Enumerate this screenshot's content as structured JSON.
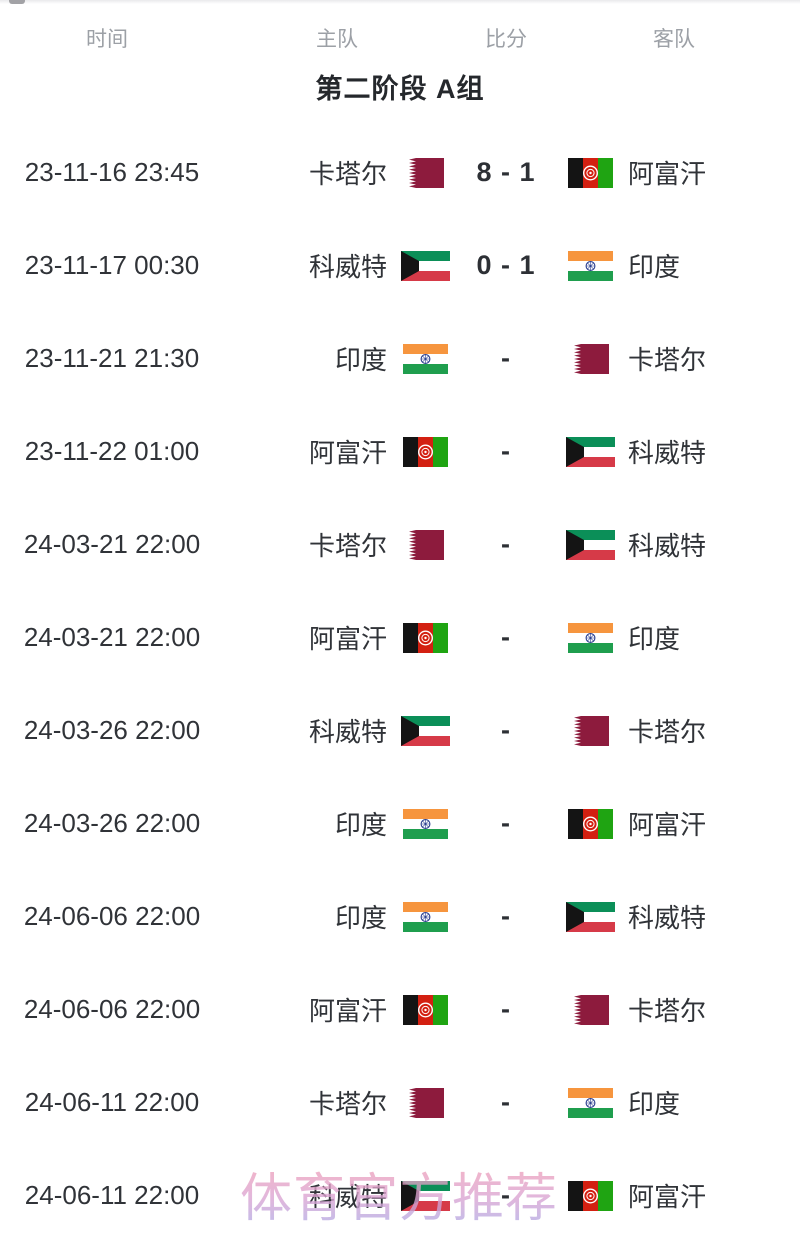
{
  "table_header": {
    "time": "时间",
    "home": "主队",
    "score": "比分",
    "away": "客队"
  },
  "group_title": "第二阶段 A组",
  "watermark_text": "体育官方推荐",
  "flag_colors": {
    "qatar_maroon": "#8d1b3d",
    "afghan_black": "#141414",
    "afghan_red": "#d32011",
    "afghan_green": "#1fa412",
    "kuwait_green": "#0b8f58",
    "kuwait_red": "#d63a48",
    "kuwait_black": "#141414",
    "india_saffron": "#f6953e",
    "india_green": "#1f9e4e",
    "india_navy": "#2b3f8f",
    "white": "#ffffff"
  },
  "matches": [
    {
      "time": "23-11-16 23:45",
      "home": {
        "name": "卡塔尔",
        "flag": "qatar"
      },
      "score": "8 - 1",
      "away": {
        "name": "阿富汗",
        "flag": "afghanistan"
      }
    },
    {
      "time": "23-11-17 00:30",
      "home": {
        "name": "科威特",
        "flag": "kuwait"
      },
      "score": "0 - 1",
      "away": {
        "name": "印度",
        "flag": "india"
      }
    },
    {
      "time": "23-11-21 21:30",
      "home": {
        "name": "印度",
        "flag": "india"
      },
      "score": "-",
      "away": {
        "name": "卡塔尔",
        "flag": "qatar"
      }
    },
    {
      "time": "23-11-22 01:00",
      "home": {
        "name": "阿富汗",
        "flag": "afghanistan"
      },
      "score": "-",
      "away": {
        "name": "科威特",
        "flag": "kuwait"
      }
    },
    {
      "time": "24-03-21 22:00",
      "home": {
        "name": "卡塔尔",
        "flag": "qatar"
      },
      "score": "-",
      "away": {
        "name": "科威特",
        "flag": "kuwait"
      }
    },
    {
      "time": "24-03-21 22:00",
      "home": {
        "name": "阿富汗",
        "flag": "afghanistan"
      },
      "score": "-",
      "away": {
        "name": "印度",
        "flag": "india"
      }
    },
    {
      "time": "24-03-26 22:00",
      "home": {
        "name": "科威特",
        "flag": "kuwait"
      },
      "score": "-",
      "away": {
        "name": "卡塔尔",
        "flag": "qatar"
      }
    },
    {
      "time": "24-03-26 22:00",
      "home": {
        "name": "印度",
        "flag": "india"
      },
      "score": "-",
      "away": {
        "name": "阿富汗",
        "flag": "afghanistan"
      }
    },
    {
      "time": "24-06-06 22:00",
      "home": {
        "name": "印度",
        "flag": "india"
      },
      "score": "-",
      "away": {
        "name": "科威特",
        "flag": "kuwait"
      }
    },
    {
      "time": "24-06-06 22:00",
      "home": {
        "name": "阿富汗",
        "flag": "afghanistan"
      },
      "score": "-",
      "away": {
        "name": "卡塔尔",
        "flag": "qatar"
      }
    },
    {
      "time": "24-06-11 22:00",
      "home": {
        "name": "卡塔尔",
        "flag": "qatar"
      },
      "score": "-",
      "away": {
        "name": "印度",
        "flag": "india"
      }
    },
    {
      "time": "24-06-11 22:00",
      "home": {
        "name": "科威特",
        "flag": "kuwait"
      },
      "score": "-",
      "away": {
        "name": "阿富汗",
        "flag": "afghanistan"
      }
    }
  ]
}
